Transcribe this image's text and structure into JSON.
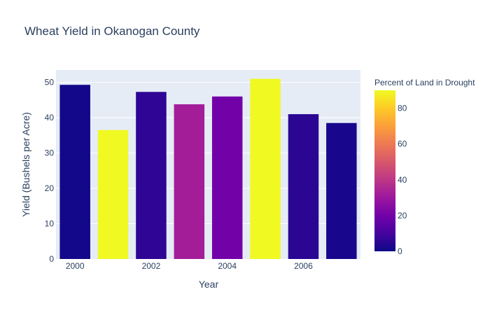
{
  "chart_data": {
    "type": "bar",
    "title": "Wheat Yield in Okanogan County",
    "xlabel": "Year",
    "ylabel": "Yield (Bushels per Acre)",
    "x": [
      2000,
      2001,
      2002,
      2003,
      2004,
      2005,
      2006,
      2007
    ],
    "values": [
      49.3,
      36.5,
      47.3,
      43.8,
      46.0,
      51.0,
      41.0,
      38.5
    ],
    "color_values": [
      1,
      90,
      6,
      32,
      20,
      90,
      5,
      2
    ],
    "x_tick_labels": [
      "2000",
      "2002",
      "2004",
      "2006"
    ],
    "ylim": [
      0,
      53.5
    ],
    "y_ticks": [
      0,
      10,
      20,
      30,
      40,
      50
    ],
    "colorbar": {
      "title": "Percent of Land in Drought",
      "range": [
        0,
        90
      ],
      "ticks": [
        0,
        20,
        40,
        60,
        80
      ],
      "colorscale": [
        "#0d0887",
        "#46039f",
        "#7201a8",
        "#9c179e",
        "#bd3786",
        "#d8576b",
        "#ed7953",
        "#fb9f3a",
        "#fdca26",
        "#f0f921"
      ]
    },
    "grid": true,
    "plot_bgcolor": "#e5ecf6"
  }
}
